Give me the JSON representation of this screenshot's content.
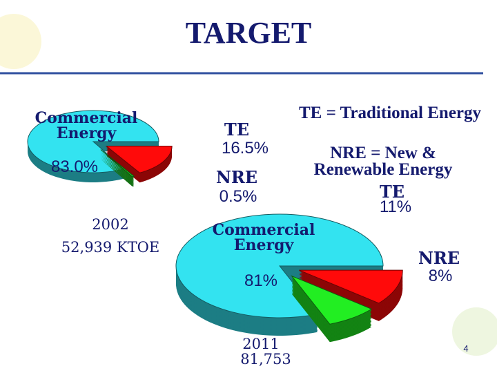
{
  "title": "TARGET",
  "notes": [
    "TE = Traditional Energy",
    "NRE = New & Renewable Energy"
  ],
  "page_number": "4",
  "chart_data": [
    {
      "type": "pie",
      "categories": [
        "Commercial Energy",
        "TE",
        "NRE"
      ],
      "values": [
        83.0,
        16.5,
        0.5
      ],
      "value_labels": [
        "83.0%",
        "16.5%",
        "0.5%"
      ],
      "colors": [
        "#33e3f0",
        "#ff0a0a",
        "#22cc22"
      ],
      "year": "2002",
      "total": "52,939 KTOE"
    },
    {
      "type": "pie",
      "categories": [
        "Commercial Energy",
        "TE",
        "NRE"
      ],
      "values": [
        81,
        11,
        8
      ],
      "value_labels": [
        "81%",
        "11%",
        "8%"
      ],
      "colors": [
        "#33e3f0",
        "#ff0a0a",
        "#22ee22"
      ],
      "year": "2011",
      "total": "81,753"
    }
  ]
}
